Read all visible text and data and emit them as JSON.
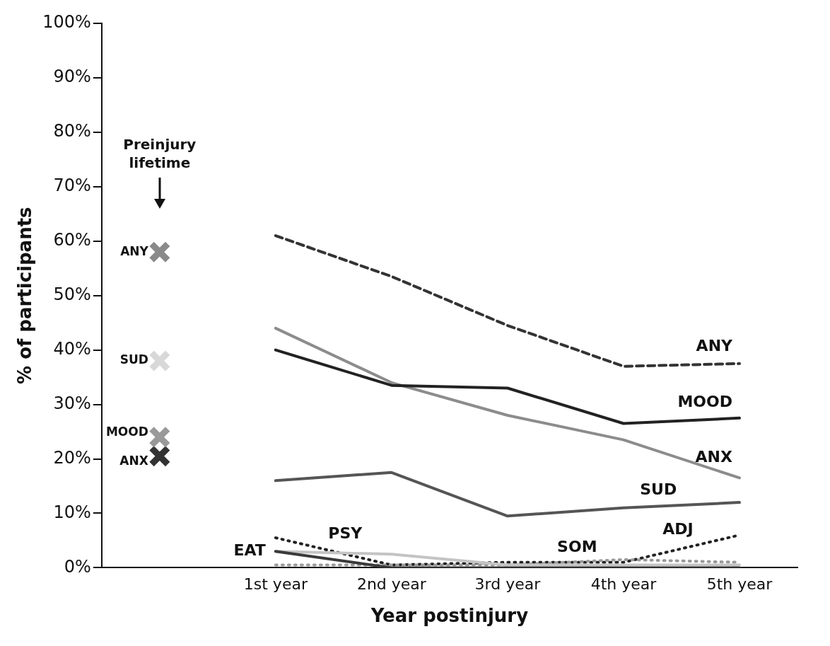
{
  "chart_data": {
    "type": "line",
    "xlabel": "Year postinjury",
    "ylabel": "% of participants",
    "categories": [
      null,
      "1st year",
      "2nd year",
      "3rd year",
      "4th year",
      "5th year"
    ],
    "ylim": [
      0,
      100
    ],
    "yticks": [
      {
        "value": 0,
        "label": "0%"
      },
      {
        "value": 10,
        "label": "10%"
      },
      {
        "value": 20,
        "label": "20%"
      },
      {
        "value": 30,
        "label": "30%"
      },
      {
        "value": 40,
        "label": "40%"
      },
      {
        "value": 50,
        "label": "50%"
      },
      {
        "value": 60,
        "label": "60%"
      },
      {
        "value": 70,
        "label": "70%"
      },
      {
        "value": 80,
        "label": "80%"
      },
      {
        "value": 90,
        "label": "90%"
      },
      {
        "value": 100,
        "label": "100%"
      }
    ],
    "grid": false,
    "legend": false,
    "annotations": [
      "Preinjury lifetime"
    ],
    "series": [
      {
        "name": "ANY",
        "type": "scatter",
        "marker": "cross",
        "color": "#8a8a8a",
        "values": [
          58,
          null,
          null,
          null,
          null,
          null
        ]
      },
      {
        "name": "SUD",
        "type": "scatter",
        "marker": "cross",
        "color": "#d8d8d8",
        "values": [
          38,
          null,
          null,
          null,
          null,
          null
        ]
      },
      {
        "name": "MOOD",
        "type": "scatter",
        "marker": "cross",
        "color": "#999999",
        "values": [
          24,
          null,
          null,
          null,
          null,
          null
        ]
      },
      {
        "name": "ANX",
        "type": "scatter",
        "marker": "cross",
        "color": "#333333",
        "values": [
          20.5,
          null,
          null,
          null,
          null,
          null
        ]
      },
      {
        "name": "ANY",
        "line_style": "dashed",
        "color": "#333333",
        "values": [
          null,
          61,
          53.5,
          44.5,
          37,
          37.5
        ]
      },
      {
        "name": "MOOD",
        "line_style": "solid",
        "color": "#222222",
        "values": [
          null,
          40,
          33.5,
          33,
          26.5,
          27.5
        ]
      },
      {
        "name": "ANX",
        "line_style": "solid",
        "color": "#8c8c8c",
        "values": [
          null,
          44,
          34,
          28,
          23.5,
          16.5
        ]
      },
      {
        "name": "SUD",
        "line_style": "solid",
        "color": "#555555",
        "values": [
          null,
          16,
          17.5,
          9.5,
          11,
          12
        ]
      },
      {
        "name": "EAT",
        "line_style": "solid",
        "color": "#3a3a3a",
        "values": [
          null,
          3,
          0,
          0,
          0,
          0
        ]
      },
      {
        "name": "PSY",
        "line_style": "solid",
        "color": "#c4c4c4",
        "values": [
          null,
          3,
          2.5,
          0.5,
          0.5,
          0.5
        ]
      },
      {
        "name": "SOM",
        "line_style": "dotted",
        "color": "#999999",
        "values": [
          null,
          0.5,
          0.5,
          0.5,
          1.5,
          1
        ]
      },
      {
        "name": "ADJ",
        "line_style": "dotted",
        "color": "#222222",
        "values": [
          null,
          5.5,
          0.5,
          1,
          1,
          6
        ]
      }
    ]
  }
}
